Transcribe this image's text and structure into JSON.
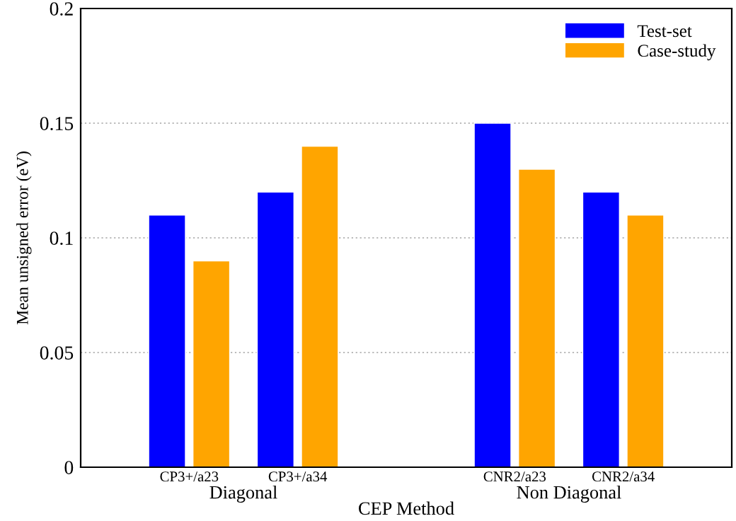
{
  "chart_data": {
    "type": "bar",
    "xlabel": "CEP Method",
    "ylabel": "Mean unsigned error (eV)",
    "categories": [
      "CP3+/a23",
      "CP3+/a34",
      null,
      "CNR2/a23",
      "CNR2/a34"
    ],
    "series": [
      {
        "name": "Test-set",
        "color": "#0000ff",
        "values": [
          0.11,
          0.12,
          null,
          0.15,
          0.12
        ]
      },
      {
        "name": "Case-study",
        "color": "#ffa500",
        "values": [
          0.09,
          0.14,
          null,
          0.13,
          0.11
        ]
      }
    ],
    "ylim": [
      0,
      0.2
    ],
    "yticks": [
      0,
      0.05,
      {
        "value": 0.1,
        "label": "0.1"
      },
      0.15,
      {
        "value": 0.2,
        "label": "0.2"
      }
    ],
    "grid": "y",
    "legend": "top right",
    "annotations": [
      "Diagonal",
      "Non Diagonal"
    ]
  }
}
